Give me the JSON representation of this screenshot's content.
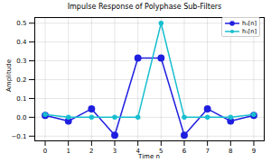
{
  "chart_data": {
    "type": "line",
    "title": "Impulse Response of Polyphase Sub-Filters",
    "xlabel": "Time n",
    "ylabel": "Amplitude",
    "x": [
      0,
      1,
      2,
      3,
      4,
      5,
      6,
      7,
      8,
      9
    ],
    "series": [
      {
        "name": "h₀[n]",
        "color": "#1f1fe0",
        "marker": "o",
        "line_style": "solid",
        "values": [
          0.01,
          -0.02,
          0.045,
          -0.095,
          0.315,
          0.315,
          -0.095,
          0.045,
          -0.02,
          0.01
        ]
      },
      {
        "name": "h₁[n]",
        "color": "#17becf",
        "marker": "o",
        "line_style": "solid",
        "values": [
          0.015,
          0,
          0,
          0,
          0,
          0.5,
          0,
          0,
          0,
          0.015
        ]
      }
    ],
    "xlim": [
      -0.45,
      9.45
    ],
    "xticks": [
      0,
      1,
      2,
      3,
      4,
      5,
      6,
      7,
      8,
      9
    ],
    "ylim": [
      -0.125,
      0.53
    ],
    "yticks": [
      {
        "value": -0.1,
        "label": "−0.1"
      },
      {
        "value": 0,
        "label": "0.0"
      },
      0.1,
      0.2,
      0.3,
      0.4,
      0.5
    ],
    "grid": true,
    "legend": "upper right"
  }
}
